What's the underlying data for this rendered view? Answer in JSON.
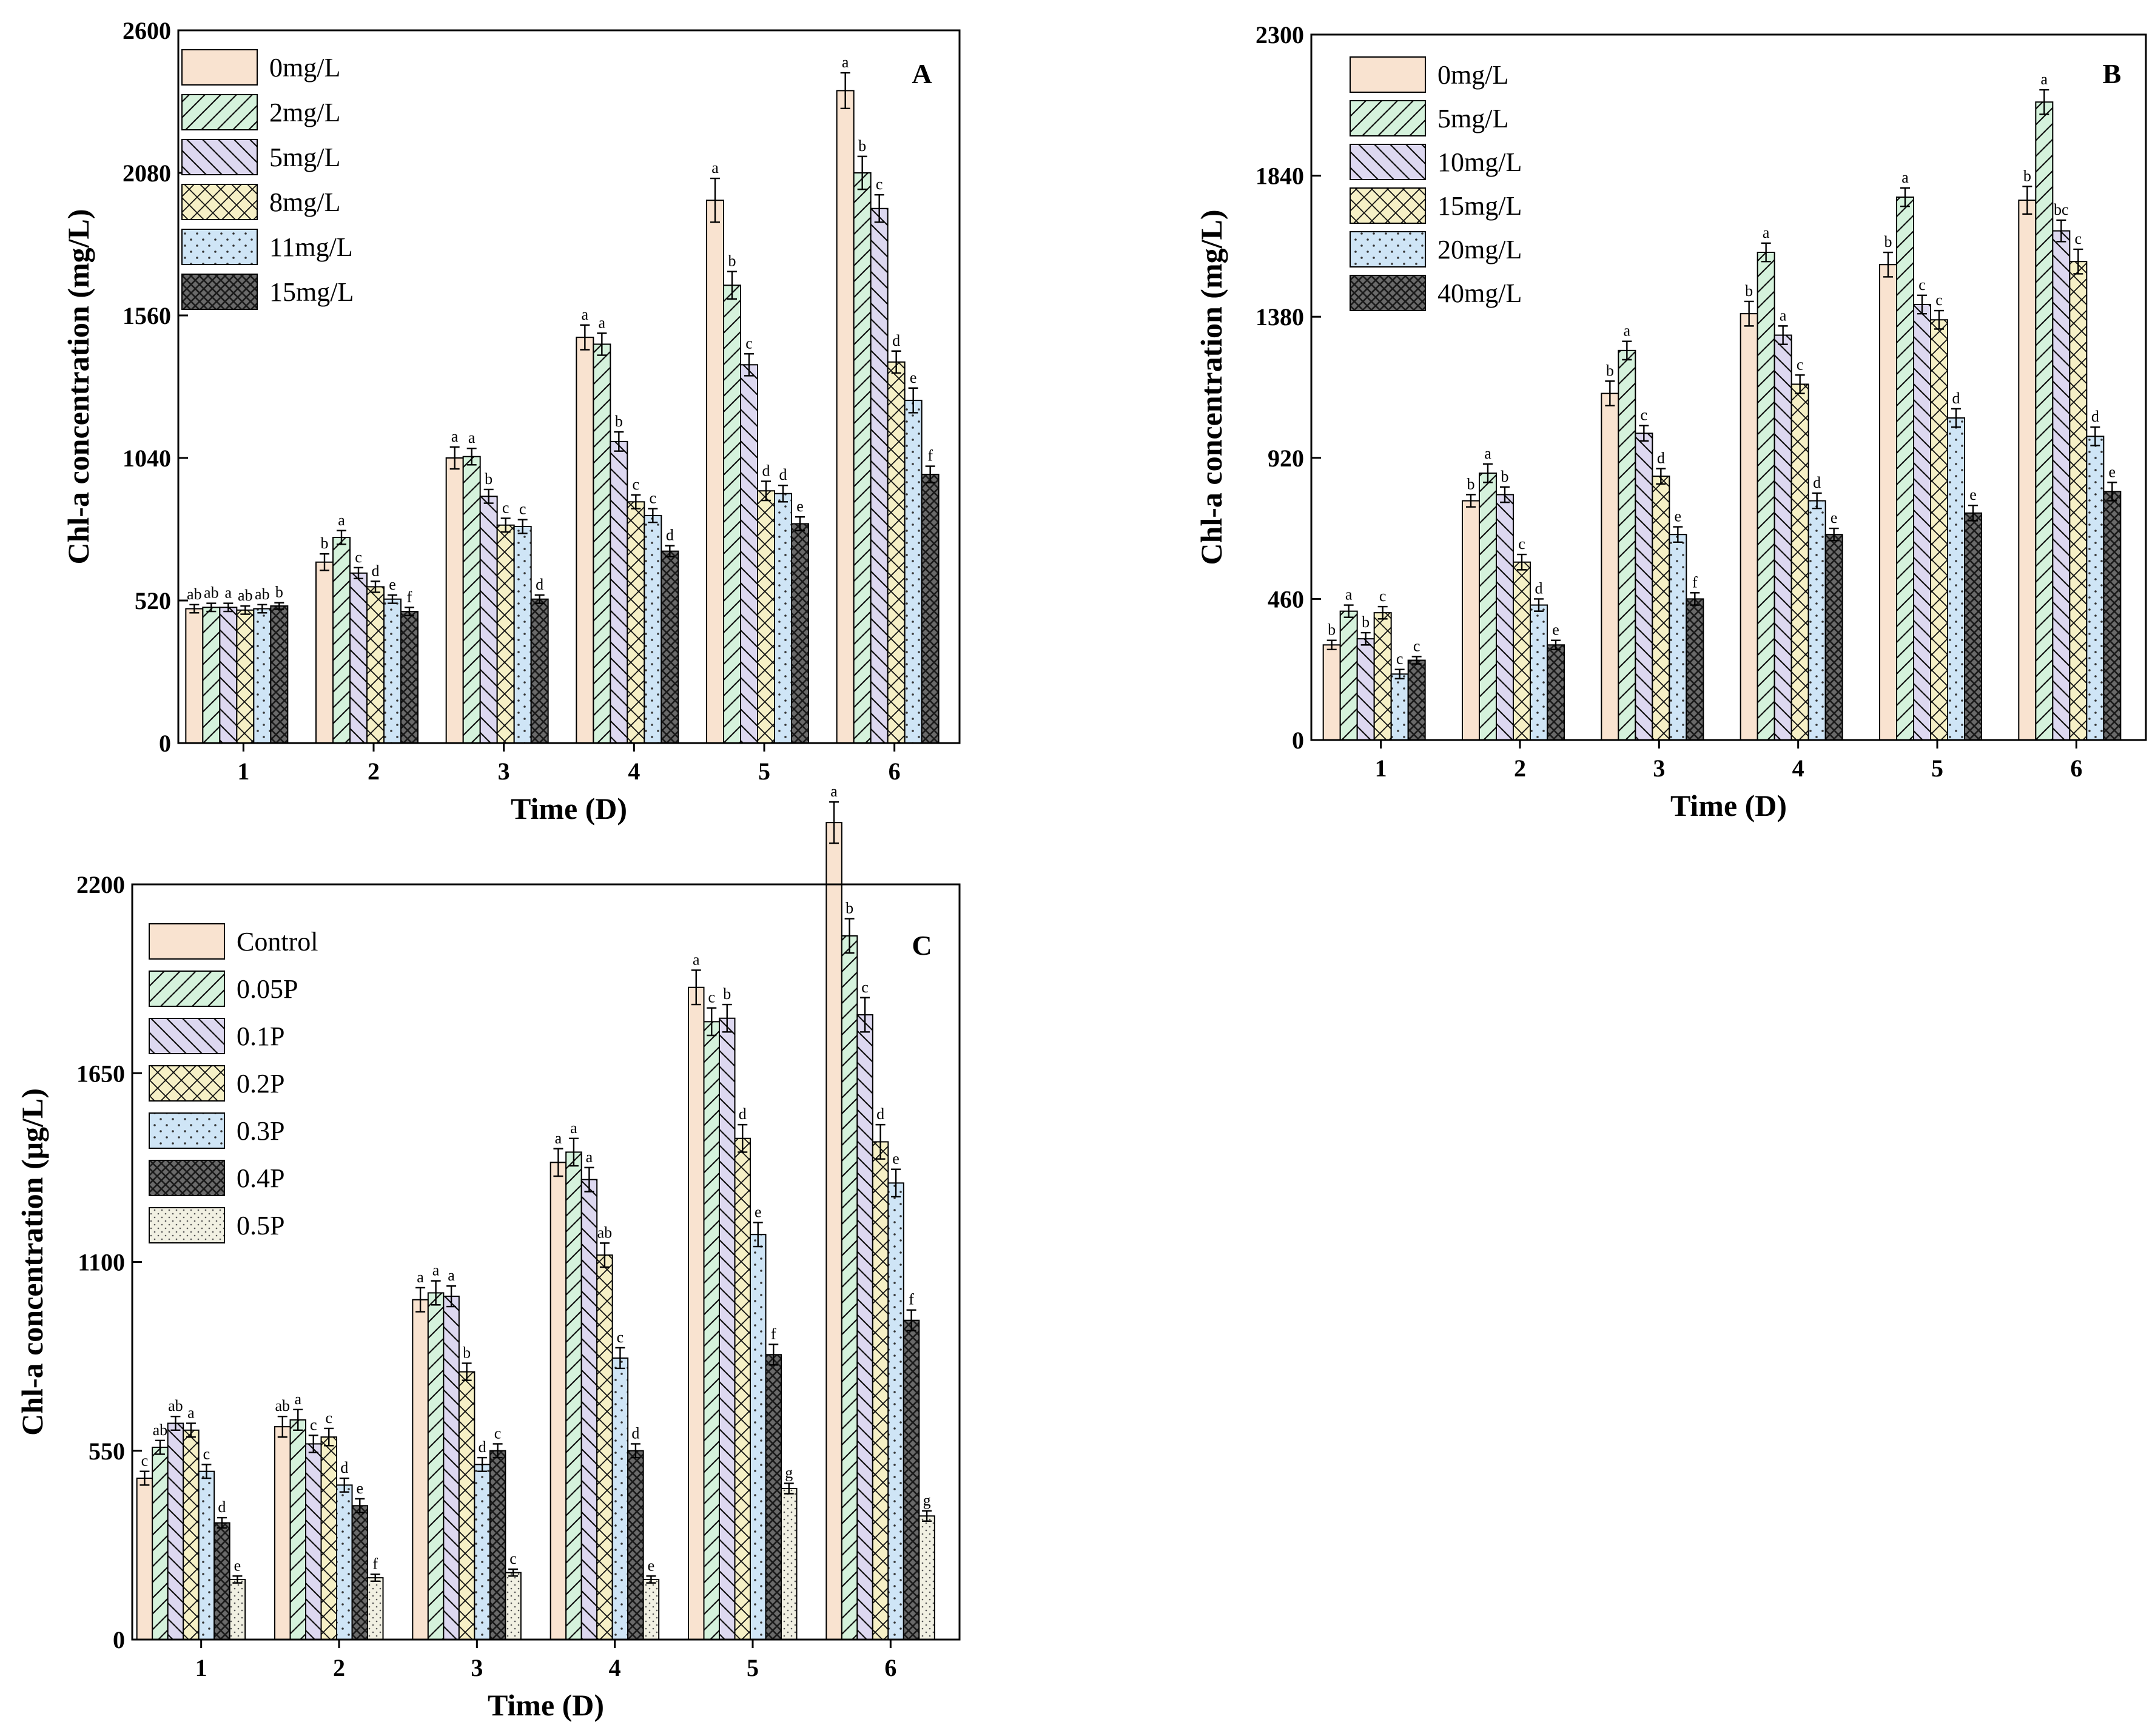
{
  "chart_data": [
    {
      "type": "bar",
      "panel_label": "A",
      "xlabel": "Time (D)",
      "ylabel": "Chl-a concentration (mg/L)",
      "ylim": [
        0,
        2600
      ],
      "yticks": [
        "0",
        "520",
        "1040",
        "1560",
        "2080",
        "2600"
      ],
      "categories": [
        "1",
        "2",
        "3",
        "4",
        "5",
        "6"
      ],
      "series": [
        {
          "name": "0mg/L",
          "values": [
            490,
            660,
            1040,
            1480,
            1980,
            2380
          ],
          "errors": [
            15,
            30,
            40,
            45,
            80,
            65
          ],
          "letters": [
            "ab",
            "b",
            "a",
            "a",
            "a",
            "a"
          ]
        },
        {
          "name": "2mg/L",
          "values": [
            495,
            750,
            1045,
            1455,
            1670,
            2080
          ],
          "errors": [
            15,
            25,
            30,
            40,
            50,
            60
          ],
          "letters": [
            "ab",
            "a",
            "a",
            "a",
            "b",
            "b"
          ]
        },
        {
          "name": "5mg/L",
          "values": [
            495,
            620,
            900,
            1100,
            1380,
            1950
          ],
          "errors": [
            15,
            20,
            25,
            35,
            40,
            50
          ],
          "letters": [
            "a",
            "c",
            "b",
            "b",
            "c",
            "c"
          ]
        },
        {
          "name": "8mg/L",
          "values": [
            485,
            570,
            795,
            880,
            920,
            1390
          ],
          "errors": [
            15,
            20,
            25,
            25,
            35,
            40
          ],
          "letters": [
            "ab",
            "d",
            "c",
            "c",
            "d",
            "d"
          ]
        },
        {
          "name": "11mg/L",
          "values": [
            490,
            525,
            790,
            830,
            910,
            1250
          ],
          "errors": [
            15,
            15,
            25,
            25,
            30,
            45
          ],
          "letters": [
            "ab",
            "e",
            "c",
            "c",
            "d",
            "e"
          ]
        },
        {
          "name": "15mg/L",
          "values": [
            500,
            480,
            525,
            700,
            800,
            980
          ],
          "errors": [
            12,
            15,
            15,
            20,
            25,
            30
          ],
          "letters": [
            "b",
            "f",
            "d",
            "d",
            "e",
            "f"
          ]
        }
      ]
    },
    {
      "type": "bar",
      "panel_label": "B",
      "xlabel": "Time (D)",
      "ylabel": "Chl-a concentration (mg/L)",
      "ylim": [
        0,
        2300
      ],
      "yticks": [
        "0",
        "460",
        "920",
        "1380",
        "1840",
        "2300"
      ],
      "categories": [
        "1",
        "2",
        "3",
        "4",
        "5",
        "6"
      ],
      "series": [
        {
          "name": "0mg/L",
          "values": [
            310,
            780,
            1130,
            1390,
            1550,
            1760
          ],
          "errors": [
            15,
            20,
            40,
            40,
            40,
            45
          ],
          "letters": [
            "b",
            "b",
            "b",
            "b",
            "b",
            "b"
          ]
        },
        {
          "name": "5mg/L",
          "values": [
            420,
            870,
            1270,
            1590,
            1770,
            2080
          ],
          "errors": [
            20,
            30,
            30,
            30,
            30,
            40
          ],
          "letters": [
            "a",
            "a",
            "a",
            "a",
            "a",
            "a"
          ]
        },
        {
          "name": "10mg/L",
          "values": [
            330,
            800,
            1000,
            1320,
            1420,
            1660
          ],
          "errors": [
            20,
            25,
            25,
            30,
            30,
            35
          ],
          "letters": [
            "b",
            "b",
            "c",
            "a",
            "c",
            "bc"
          ]
        },
        {
          "name": "15mg/L",
          "values": [
            415,
            580,
            860,
            1160,
            1370,
            1560
          ],
          "errors": [
            20,
            25,
            25,
            30,
            30,
            40
          ],
          "letters": [
            "c",
            "c",
            "d",
            "c",
            "c",
            "c"
          ]
        },
        {
          "name": "20mg/L",
          "values": [
            215,
            440,
            670,
            780,
            1050,
            990
          ],
          "errors": [
            15,
            20,
            25,
            25,
            30,
            30
          ],
          "letters": [
            "c",
            "d",
            "e",
            "d",
            "d",
            "d"
          ]
        },
        {
          "name": "40mg/L",
          "values": [
            260,
            310,
            460,
            670,
            740,
            810
          ],
          "errors": [
            12,
            15,
            20,
            20,
            25,
            30
          ],
          "letters": [
            "c",
            "e",
            "f",
            "e",
            "e",
            "e"
          ]
        }
      ]
    },
    {
      "type": "bar",
      "panel_label": "C",
      "xlabel": "Time (D)",
      "ylabel": "Chl-a concentration (μg/L)",
      "ylim": [
        0,
        2200
      ],
      "yticks": [
        "0",
        "550",
        "1100",
        "1650",
        "2200"
      ],
      "categories": [
        "1",
        "2",
        "3",
        "4",
        "5",
        "6"
      ],
      "series": [
        {
          "name": "Control",
          "values": [
            470,
            620,
            990,
            1390,
            1900,
            2380
          ],
          "errors": [
            20,
            30,
            35,
            40,
            50,
            60
          ],
          "letters": [
            "c",
            "ab",
            "a",
            "a",
            "a",
            "a"
          ]
        },
        {
          "name": "0.05P",
          "values": [
            560,
            640,
            1010,
            1420,
            1800,
            2050
          ],
          "errors": [
            20,
            30,
            35,
            40,
            40,
            50
          ],
          "letters": [
            "ab",
            "a",
            "a",
            "a",
            "c",
            "b"
          ]
        },
        {
          "name": "0.1P",
          "values": [
            630,
            570,
            1000,
            1340,
            1810,
            1820
          ],
          "errors": [
            20,
            25,
            30,
            35,
            40,
            50
          ],
          "letters": [
            "ab",
            "c",
            "a",
            "a",
            "b",
            "c"
          ]
        },
        {
          "name": "0.2P",
          "values": [
            610,
            590,
            780,
            1120,
            1460,
            1450
          ],
          "errors": [
            20,
            25,
            25,
            35,
            40,
            50
          ],
          "letters": [
            "a",
            "c",
            "b",
            "ab",
            "d",
            "d"
          ]
        },
        {
          "name": "0.3P",
          "values": [
            490,
            450,
            510,
            820,
            1180,
            1330
          ],
          "errors": [
            20,
            20,
            20,
            30,
            35,
            40
          ],
          "letters": [
            "c",
            "d",
            "d",
            "c",
            "e",
            "e"
          ]
        },
        {
          "name": "0.4P",
          "values": [
            340,
            390,
            550,
            550,
            830,
            930
          ],
          "errors": [
            15,
            20,
            20,
            20,
            30,
            30
          ],
          "letters": [
            "d",
            "e",
            "c",
            "d",
            "f",
            "f"
          ]
        },
        {
          "name": "0.5P",
          "values": [
            175,
            180,
            195,
            175,
            440,
            360
          ],
          "errors": [
            10,
            10,
            10,
            10,
            15,
            15
          ],
          "letters": [
            "e",
            "f",
            "c",
            "e",
            "g",
            "g"
          ]
        }
      ]
    }
  ]
}
